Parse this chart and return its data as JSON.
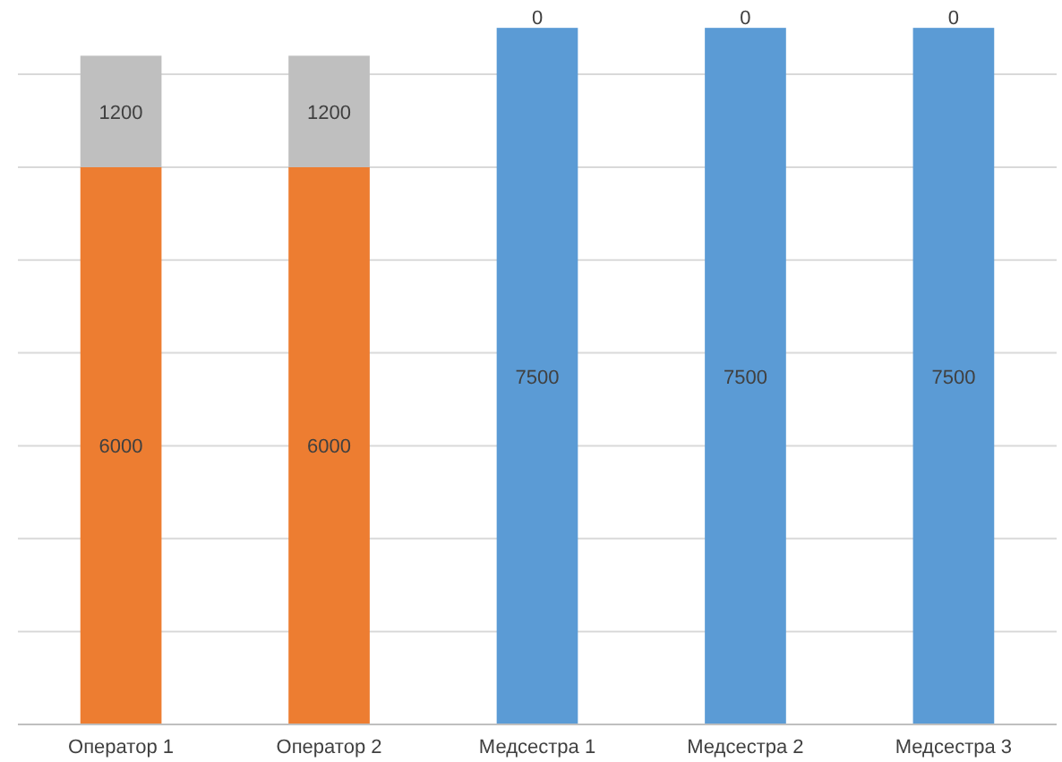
{
  "chart_data": {
    "type": "bar",
    "stacked": true,
    "categories": [
      "Оператор 1",
      "Оператор 2",
      "Медсестра 1",
      "Медсестра 2",
      "Медсестра 3"
    ],
    "series": [
      {
        "colors": [
          "#ed7d31",
          "#ed7d31",
          "#5b9bd5",
          "#5b9bd5",
          "#5b9bd5"
        ],
        "values": [
          6000,
          6000,
          7500,
          7500,
          7500
        ]
      },
      {
        "color": "#bfbfbf",
        "values": [
          1200,
          1200,
          0,
          0,
          0
        ]
      }
    ],
    "yticks": [
      {
        "value": 0,
        "label": null
      },
      {
        "value": 1000,
        "label": null
      },
      {
        "value": 2000,
        "label": null
      },
      {
        "value": 3000,
        "label": null
      },
      {
        "value": 4000,
        "label": null
      },
      {
        "value": 5000,
        "label": null
      },
      {
        "value": 6000,
        "label": null
      },
      {
        "value": 7000,
        "label": null
      }
    ],
    "grid": "y",
    "tick_labels": "x",
    "data_labels": true
  }
}
